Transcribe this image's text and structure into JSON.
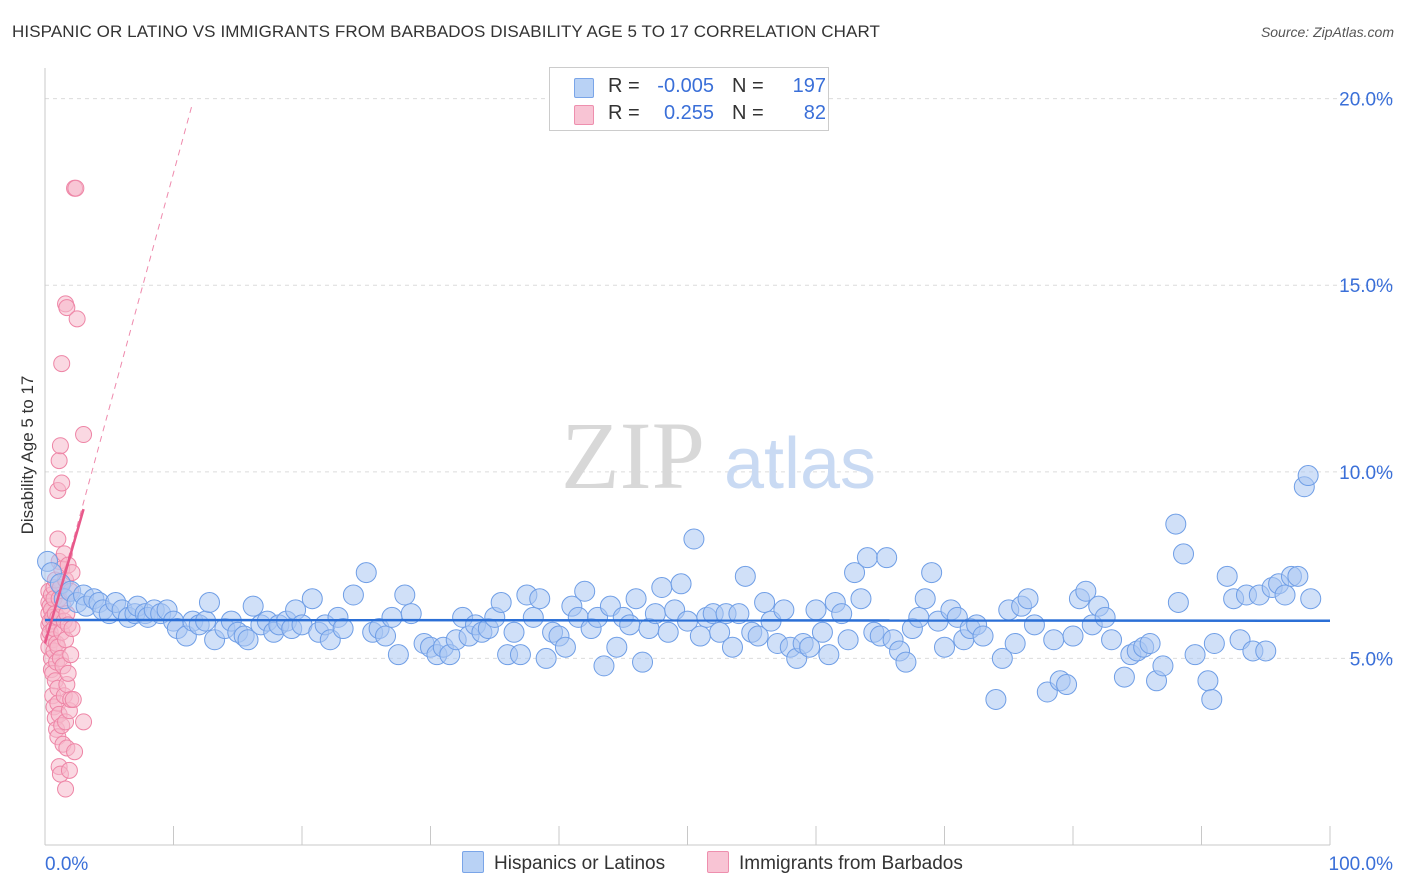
{
  "title": "HISPANIC OR LATINO VS IMMIGRANTS FROM BARBADOS DISABILITY AGE 5 TO 17 CORRELATION CHART",
  "source": "Source: ZipAtlas.com",
  "watermark": {
    "zip": "ZIP",
    "atlas": "atlas"
  },
  "legend": {
    "rows": [
      {
        "r_label": "R =",
        "r_value": "-0.005",
        "n_label": "N =",
        "n_value": "197"
      },
      {
        "r_label": "R =",
        "r_value": "0.255",
        "n_label": "N =",
        "n_value": "82"
      }
    ]
  },
  "bottom_legend": {
    "series1": "Hispanics or Latinos",
    "series2": "Immigrants from Barbados"
  },
  "colors": {
    "blue_fill": "#a9c6f2",
    "blue_stroke": "#6f9ee6",
    "blue_line": "#2b6fd6",
    "pink_fill": "#f6b8cb",
    "pink_stroke": "#ee85a6",
    "pink_line": "#e8588a",
    "axis_text": "#3a6fd8"
  },
  "chart_data": {
    "type": "scatter",
    "title": "HISPANIC OR LATINO VS IMMIGRANTS FROM BARBADOS DISABILITY AGE 5 TO 17 CORRELATION CHART",
    "xlabel": "",
    "ylabel": "Disability Age 5 to 17",
    "xlim": [
      0,
      100
    ],
    "ylim": [
      0,
      20.5
    ],
    "x_tick_labels": [
      "0.0%",
      "100.0%"
    ],
    "y_ticks": [
      5,
      10,
      15,
      20
    ],
    "y_tick_labels": [
      "5.0%",
      "10.0%",
      "15.0%",
      "20.0%"
    ],
    "grid": true,
    "series": [
      {
        "name": "Hispanics or Latinos",
        "R": -0.005,
        "N": 197,
        "trend": {
          "x": [
            0,
            100
          ],
          "y": [
            6.03,
            6.01
          ]
        },
        "points": [
          [
            0.2,
            7.6
          ],
          [
            0.5,
            7.3
          ],
          [
            1.2,
            7.0
          ],
          [
            1.5,
            6.6
          ],
          [
            2.0,
            6.8
          ],
          [
            2.5,
            6.5
          ],
          [
            3.0,
            6.7
          ],
          [
            3.2,
            6.4
          ],
          [
            3.8,
            6.6
          ],
          [
            4.2,
            6.5
          ],
          [
            4.5,
            6.3
          ],
          [
            5.0,
            6.2
          ],
          [
            5.5,
            6.5
          ],
          [
            6.0,
            6.3
          ],
          [
            6.5,
            6.1
          ],
          [
            7.0,
            6.2
          ],
          [
            7.2,
            6.4
          ],
          [
            7.8,
            6.2
          ],
          [
            8.0,
            6.1
          ],
          [
            8.5,
            6.3
          ],
          [
            9.0,
            6.2
          ],
          [
            9.5,
            6.3
          ],
          [
            10.0,
            6.0
          ],
          [
            10.3,
            5.8
          ],
          [
            11.0,
            5.6
          ],
          [
            11.5,
            6.0
          ],
          [
            12.0,
            5.9
          ],
          [
            12.5,
            6.0
          ],
          [
            12.8,
            6.5
          ],
          [
            13.2,
            5.5
          ],
          [
            14.0,
            5.8
          ],
          [
            14.5,
            6.0
          ],
          [
            15.0,
            5.7
          ],
          [
            15.5,
            5.6
          ],
          [
            15.8,
            5.5
          ],
          [
            16.2,
            6.4
          ],
          [
            16.8,
            5.9
          ],
          [
            17.3,
            6.0
          ],
          [
            17.8,
            5.7
          ],
          [
            18.2,
            5.9
          ],
          [
            18.8,
            6.0
          ],
          [
            19.2,
            5.8
          ],
          [
            19.5,
            6.3
          ],
          [
            20.0,
            5.9
          ],
          [
            20.8,
            6.6
          ],
          [
            21.3,
            5.7
          ],
          [
            21.8,
            5.9
          ],
          [
            22.2,
            5.5
          ],
          [
            22.8,
            6.1
          ],
          [
            23.2,
            5.8
          ],
          [
            24.0,
            6.7
          ],
          [
            25.0,
            7.3
          ],
          [
            25.5,
            5.7
          ],
          [
            26.0,
            5.8
          ],
          [
            26.5,
            5.6
          ],
          [
            27.0,
            6.1
          ],
          [
            27.5,
            5.1
          ],
          [
            28.0,
            6.7
          ],
          [
            28.5,
            6.2
          ],
          [
            29.5,
            5.4
          ],
          [
            30.0,
            5.3
          ],
          [
            30.5,
            5.1
          ],
          [
            31.0,
            5.3
          ],
          [
            31.5,
            5.1
          ],
          [
            32.0,
            5.5
          ],
          [
            32.5,
            6.1
          ],
          [
            33.0,
            5.6
          ],
          [
            33.5,
            5.9
          ],
          [
            34.0,
            5.7
          ],
          [
            34.5,
            5.8
          ],
          [
            35.0,
            6.1
          ],
          [
            35.5,
            6.5
          ],
          [
            36.0,
            5.1
          ],
          [
            36.5,
            5.7
          ],
          [
            37.0,
            5.1
          ],
          [
            37.5,
            6.7
          ],
          [
            38.0,
            6.1
          ],
          [
            38.5,
            6.6
          ],
          [
            39.0,
            5.0
          ],
          [
            39.5,
            5.7
          ],
          [
            40.0,
            5.6
          ],
          [
            40.5,
            5.3
          ],
          [
            41.0,
            6.4
          ],
          [
            41.5,
            6.1
          ],
          [
            42.0,
            6.8
          ],
          [
            42.5,
            5.8
          ],
          [
            43.0,
            6.1
          ],
          [
            43.5,
            4.8
          ],
          [
            44.0,
            6.4
          ],
          [
            44.5,
            5.3
          ],
          [
            45.0,
            6.1
          ],
          [
            45.5,
            5.9
          ],
          [
            46.0,
            6.6
          ],
          [
            46.5,
            4.9
          ],
          [
            47.0,
            5.8
          ],
          [
            47.5,
            6.2
          ],
          [
            48.0,
            6.9
          ],
          [
            48.5,
            5.7
          ],
          [
            49.0,
            6.3
          ],
          [
            49.5,
            7.0
          ],
          [
            50.0,
            6.0
          ],
          [
            50.5,
            8.2
          ],
          [
            51.0,
            5.6
          ],
          [
            51.5,
            6.1
          ],
          [
            52.0,
            6.2
          ],
          [
            52.5,
            5.7
          ],
          [
            53.0,
            6.2
          ],
          [
            53.5,
            5.3
          ],
          [
            54.0,
            6.2
          ],
          [
            54.5,
            7.2
          ],
          [
            55.0,
            5.7
          ],
          [
            55.5,
            5.6
          ],
          [
            56.0,
            6.5
          ],
          [
            56.5,
            6.0
          ],
          [
            57.0,
            5.4
          ],
          [
            57.5,
            6.3
          ],
          [
            58.0,
            5.3
          ],
          [
            58.5,
            5.0
          ],
          [
            59.0,
            5.4
          ],
          [
            59.5,
            5.3
          ],
          [
            60.0,
            6.3
          ],
          [
            60.5,
            5.7
          ],
          [
            61.0,
            5.1
          ],
          [
            61.5,
            6.5
          ],
          [
            62.0,
            6.2
          ],
          [
            62.5,
            5.5
          ],
          [
            63.0,
            7.3
          ],
          [
            63.5,
            6.6
          ],
          [
            64.0,
            7.7
          ],
          [
            64.5,
            5.7
          ],
          [
            65.0,
            5.6
          ],
          [
            65.5,
            7.7
          ],
          [
            66.0,
            5.5
          ],
          [
            66.5,
            5.2
          ],
          [
            67.0,
            4.9
          ],
          [
            67.5,
            5.8
          ],
          [
            68.0,
            6.1
          ],
          [
            68.5,
            6.6
          ],
          [
            69.0,
            7.3
          ],
          [
            69.5,
            6.0
          ],
          [
            70.0,
            5.3
          ],
          [
            70.5,
            6.3
          ],
          [
            71.0,
            6.1
          ],
          [
            71.5,
            5.5
          ],
          [
            72.0,
            5.8
          ],
          [
            72.5,
            5.9
          ],
          [
            73.0,
            5.6
          ],
          [
            74.0,
            3.9
          ],
          [
            74.5,
            5.0
          ],
          [
            75.0,
            6.3
          ],
          [
            75.5,
            5.4
          ],
          [
            76.0,
            6.4
          ],
          [
            76.5,
            6.6
          ],
          [
            77.0,
            5.9
          ],
          [
            78.0,
            4.1
          ],
          [
            78.5,
            5.5
          ],
          [
            79.0,
            4.4
          ],
          [
            79.5,
            4.3
          ],
          [
            80.0,
            5.6
          ],
          [
            80.5,
            6.6
          ],
          [
            81.0,
            6.8
          ],
          [
            81.5,
            5.9
          ],
          [
            82.0,
            6.4
          ],
          [
            82.5,
            6.1
          ],
          [
            83.0,
            5.5
          ],
          [
            84.0,
            4.5
          ],
          [
            84.5,
            5.1
          ],
          [
            85.0,
            5.2
          ],
          [
            85.5,
            5.3
          ],
          [
            86.0,
            5.4
          ],
          [
            86.5,
            4.4
          ],
          [
            87.0,
            4.8
          ],
          [
            88.0,
            8.6
          ],
          [
            88.2,
            6.5
          ],
          [
            88.6,
            7.8
          ],
          [
            89.5,
            5.1
          ],
          [
            90.5,
            4.4
          ],
          [
            90.8,
            3.9
          ],
          [
            91.0,
            5.4
          ],
          [
            92.0,
            7.2
          ],
          [
            92.5,
            6.6
          ],
          [
            93.0,
            5.5
          ],
          [
            93.5,
            6.7
          ],
          [
            94.0,
            5.2
          ],
          [
            94.5,
            6.7
          ],
          [
            95.0,
            5.2
          ],
          [
            95.5,
            6.9
          ],
          [
            96.0,
            7.0
          ],
          [
            96.5,
            6.7
          ],
          [
            97.0,
            7.2
          ],
          [
            97.5,
            7.2
          ],
          [
            98.0,
            9.6
          ],
          [
            98.3,
            9.9
          ],
          [
            98.5,
            6.6
          ]
        ]
      },
      {
        "name": "Immigrants from Barbados",
        "R": 0.255,
        "N": 82,
        "trend": {
          "x": [
            0,
            3
          ],
          "y": [
            5.4,
            9.0
          ]
        },
        "trend_extended": {
          "x": [
            0,
            11.5
          ],
          "y": [
            5.4,
            19.9
          ]
        },
        "points": [
          [
            0.3,
            6.8
          ],
          [
            0.3,
            6.5
          ],
          [
            0.3,
            6.2
          ],
          [
            0.3,
            5.9
          ],
          [
            0.3,
            5.6
          ],
          [
            0.3,
            5.3
          ],
          [
            0.4,
            6.4
          ],
          [
            0.4,
            6.0
          ],
          [
            0.4,
            5.7
          ],
          [
            0.5,
            6.7
          ],
          [
            0.5,
            6.3
          ],
          [
            0.5,
            5.0
          ],
          [
            0.5,
            4.7
          ],
          [
            0.6,
            6.1
          ],
          [
            0.6,
            5.5
          ],
          [
            0.6,
            4.6
          ],
          [
            0.6,
            4.0
          ],
          [
            0.7,
            6.9
          ],
          [
            0.7,
            6.6
          ],
          [
            0.7,
            5.8
          ],
          [
            0.7,
            5.2
          ],
          [
            0.7,
            3.7
          ],
          [
            0.8,
            7.1
          ],
          [
            0.8,
            6.2
          ],
          [
            0.8,
            4.4
          ],
          [
            0.8,
            3.4
          ],
          [
            0.9,
            5.4
          ],
          [
            0.9,
            4.9
          ],
          [
            0.9,
            3.1
          ],
          [
            1.0,
            9.5
          ],
          [
            1.0,
            8.2
          ],
          [
            1.0,
            6.1
          ],
          [
            1.0,
            5.3
          ],
          [
            1.0,
            4.2
          ],
          [
            1.0,
            3.8
          ],
          [
            1.0,
            2.9
          ],
          [
            1.1,
            10.3
          ],
          [
            1.1,
            7.6
          ],
          [
            1.1,
            6.6
          ],
          [
            1.1,
            3.5
          ],
          [
            1.1,
            2.1
          ],
          [
            1.2,
            10.7
          ],
          [
            1.2,
            6.9
          ],
          [
            1.2,
            5.0
          ],
          [
            1.2,
            1.9
          ],
          [
            1.3,
            12.9
          ],
          [
            1.3,
            9.7
          ],
          [
            1.3,
            7.4
          ],
          [
            1.3,
            5.7
          ],
          [
            1.3,
            3.2
          ],
          [
            1.4,
            6.4
          ],
          [
            1.4,
            4.8
          ],
          [
            1.4,
            2.7
          ],
          [
            1.5,
            7.8
          ],
          [
            1.5,
            6.0
          ],
          [
            1.5,
            4.0
          ],
          [
            1.6,
            14.5
          ],
          [
            1.6,
            7.1
          ],
          [
            1.6,
            5.5
          ],
          [
            1.6,
            3.3
          ],
          [
            1.6,
            1.5
          ],
          [
            1.7,
            14.4
          ],
          [
            1.7,
            6.2
          ],
          [
            1.7,
            4.3
          ],
          [
            1.7,
            2.6
          ],
          [
            1.8,
            7.5
          ],
          [
            1.8,
            5.9
          ],
          [
            1.8,
            4.6
          ],
          [
            1.9,
            3.6
          ],
          [
            1.9,
            2.0
          ],
          [
            2.0,
            6.8
          ],
          [
            2.0,
            5.1
          ],
          [
            2.0,
            3.9
          ],
          [
            2.1,
            7.3
          ],
          [
            2.1,
            5.8
          ],
          [
            2.2,
            3.9
          ],
          [
            2.3,
            2.5
          ],
          [
            2.3,
            17.6
          ],
          [
            2.4,
            17.6
          ],
          [
            2.5,
            14.1
          ],
          [
            3.0,
            11.0
          ],
          [
            3.0,
            3.3
          ]
        ]
      }
    ]
  }
}
